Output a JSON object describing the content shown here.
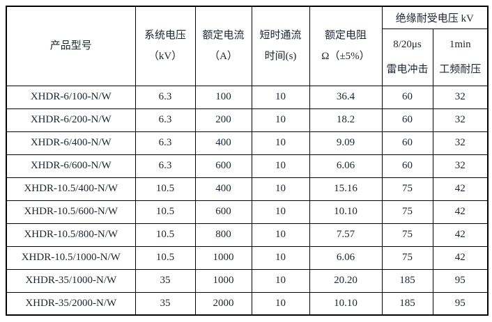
{
  "page": {
    "background": "#ffffff",
    "text_color": "#1c2331",
    "border_color": "#000000"
  },
  "table": {
    "header": {
      "product_model": "产品型号",
      "system_voltage": [
        "系统电压",
        "（kV）"
      ],
      "rated_current": [
        "额定电流",
        "（A）"
      ],
      "short_time_duration": [
        "短时通流",
        "时间(s)"
      ],
      "rated_resistance": [
        "额定电阻",
        "Ω（±5%）"
      ],
      "insulation_withstand_group": "绝缘耐受电压 kV",
      "lightning_impulse": [
        "8/20μs",
        "雷电冲击"
      ],
      "power_frequency": [
        "1min",
        "工频耐压"
      ]
    },
    "rows": [
      [
        "XHDR-6/100-N/W",
        "6.3",
        "100",
        "10",
        "36.4",
        "60",
        "32"
      ],
      [
        "XHDR-6/200-N/W",
        "6.3",
        "200",
        "10",
        "18.2",
        "60",
        "32"
      ],
      [
        "XHDR-6/400-N/W",
        "6.3",
        "400",
        "10",
        "9.09",
        "60",
        "32"
      ],
      [
        "XHDR-6/600-N/W",
        "6.3",
        "600",
        "10",
        "6.06",
        "60",
        "32"
      ],
      [
        "XHDR-10.5/400-N/W",
        "10.5",
        "400",
        "10",
        "15.16",
        "75",
        "42"
      ],
      [
        "XHDR-10.5/600-N/W",
        "10.5",
        "600",
        "10",
        "10.10",
        "75",
        "42"
      ],
      [
        "XHDR-10.5/800-N/W",
        "10.5",
        "800",
        "10",
        "7.57",
        "75",
        "42"
      ],
      [
        "XHDR-10.5/1000-N/W",
        "10.5",
        "1000",
        "10",
        "6.06",
        "75",
        "42"
      ],
      [
        "XHDR-35/1000-N/W",
        "35",
        "1000",
        "10",
        "20.20",
        "185",
        "95"
      ],
      [
        "XHDR-35/2000-N/W",
        "35",
        "2000",
        "10",
        "10.10",
        "185",
        "95"
      ]
    ]
  }
}
